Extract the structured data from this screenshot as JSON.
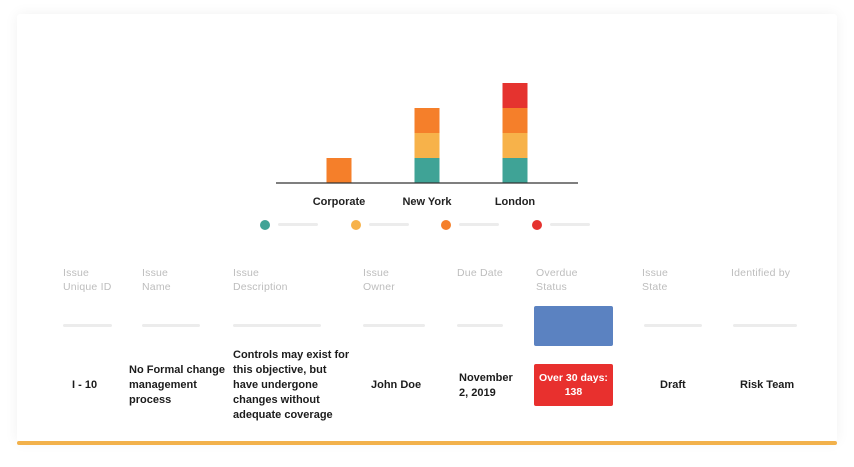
{
  "chart_data": {
    "type": "bar",
    "stacked": true,
    "categories": [
      "Corporate",
      "New York",
      "London"
    ],
    "series": [
      {
        "color": "#3fa396",
        "values": [
          0,
          1,
          1
        ]
      },
      {
        "color": "#f7b24a",
        "values": [
          0,
          1,
          1
        ]
      },
      {
        "color": "#f57f2a",
        "values": [
          1,
          1,
          1
        ]
      },
      {
        "color": "#e5332f",
        "values": [
          0,
          0,
          1
        ]
      }
    ],
    "ylim": [
      0,
      4
    ],
    "grid": false
  },
  "legend": [
    {
      "icon": "teal-dot-icon",
      "color": "#3fa396"
    },
    {
      "icon": "yellow-dot-icon",
      "color": "#f7b24a"
    },
    {
      "icon": "orange-dot-icon",
      "color": "#f57f2a"
    },
    {
      "icon": "red-dot-icon",
      "color": "#e5332f"
    }
  ],
  "table": {
    "headers": {
      "unique_id": [
        "Issue",
        "Unique ID"
      ],
      "name": [
        "Issue",
        "Name"
      ],
      "description": [
        "Issue",
        "Description"
      ],
      "owner": [
        "Issue",
        "Owner"
      ],
      "due_date": [
        "Due Date"
      ],
      "overdue_status": [
        "Overdue",
        "Status"
      ],
      "state": [
        "Issue",
        "State"
      ],
      "identified_by": [
        "Identified by"
      ]
    },
    "row": {
      "unique_id": "I - 10",
      "name": [
        "No Formal change",
        "management",
        "process"
      ],
      "description": [
        "Controls may exist for",
        "this objective, but",
        "have undergone",
        "changes without",
        "adequate coverage"
      ],
      "owner": "John Doe",
      "due_date": [
        "November",
        "2, 2019"
      ],
      "overdue_status": [
        "Over 30 days:",
        "138"
      ],
      "state": "Draft",
      "identified_by": "Risk Team"
    }
  },
  "colors": {
    "accent": "#f2b14b",
    "status_placeholder": "#5b82c1",
    "overdue_badge": "#e8302e"
  }
}
